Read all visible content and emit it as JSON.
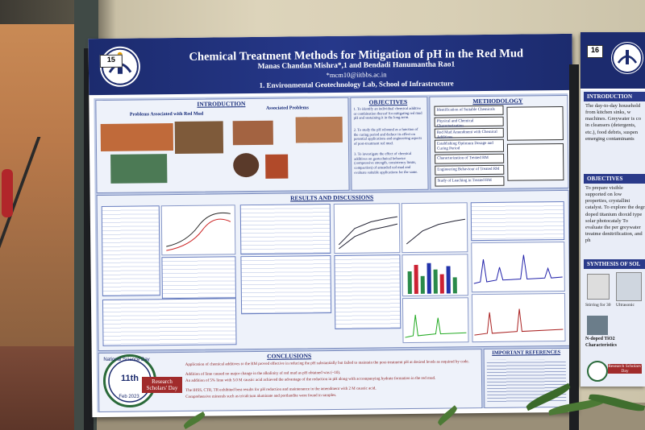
{
  "poster": {
    "number": "15",
    "title": "Chemical Treatment Methods for Mitigation of pH in the Red Mud",
    "authors": "Manas Chandan Mishra*,1 and Bendadi Hanumantha Rao1",
    "email": "*mcm10@iitbbs.ac.in",
    "affiliation": "1. Environmental Geotechnology Lab, School of Infrastructure",
    "sections": {
      "introduction": "INTRODUCTION",
      "problems": "Problems Associated with Red Mud",
      "associated": "Associated Problems",
      "objectives": "OBJECTIVES",
      "methodology": "METHODOLOGY",
      "results": "RESULTS AND DISCUSSIONS",
      "conclusions": "CONCLUSIONS",
      "references": "IMPORTANT REFERENCES"
    },
    "objectives_items": [
      "1. To identify an individual chemical additive or combination thereof for mitigating red mud pH and sustaining it in the long-term.",
      "2. To study the pH rebound as a function of the curing period and deduce its effect on potential applications and engineering aspects of post-treatment red mud.",
      "3. To investigate the effect of chemical additives on geotechnical behavior (compressive strength, consistency limits, compaction) of amended red mud and evaluate suitable applications for the same."
    ],
    "methodology_steps": [
      "Identification of Suitable Chemicals",
      "Physical and Chemical Characterization",
      "Red Mud Amendment with Chemical Additives",
      "Establishing Optimum Dosage and Curing Period",
      "Characterization of Treated RM",
      "Engineering Behaviour of Treated RM",
      "Study of Leaching in Treated RM"
    ],
    "conclusion_lines": [
      "Application of chemical additives to the RM proved effective in reducing the pH substantially but failed to maintain the post-treatment pH at desired levels as required by code.",
      "Addition of lime caused no major change in the alkalinity of red mud as pH obtained was (~10).",
      "An addition of 5% lime with 5.0 M caustic acid achieved the advantage of the reduction in pH along with accompanying hydrate formation in the red mud.",
      "The IHSS, CTR, TR exhibited best results for pH reduction and maintenance in the amendment with 2 M caustic acid.",
      "Comprehensive minerals such as tricalcium aluminate and portlandite were found in samples."
    ],
    "badge": {
      "label": "National Science Day",
      "number": "11th",
      "event": "Research Scholars' Day",
      "date": "Feb 2023"
    }
  },
  "side_poster": {
    "number": "16",
    "sections": [
      "INTRODUCTION",
      "OBJECTIVES",
      "SYNTHESIS OF SOL"
    ],
    "intro_text": "The day-to-day household from kitchen sinks, w machines. Greywater is co in cleansers (detergents, etc.), food debris, suspen emerging contaminants",
    "objective_text": "To prepare visible supported on low properties, crystallini catalyst. To explore the degr doped titanium dioxid type solar photocataly To evaluate the per greywater treatme denitrification, and ph",
    "labels": [
      "Stirring for 30",
      "Ultrasonic",
      "N-doped TiO2",
      "Characteristics"
    ],
    "badge_text": "Research Scholars' Day"
  },
  "colors": {
    "poster_header": "#1c2b6e",
    "poster_body": "#bfcbe6",
    "badge_red": "#a12b2b"
  }
}
